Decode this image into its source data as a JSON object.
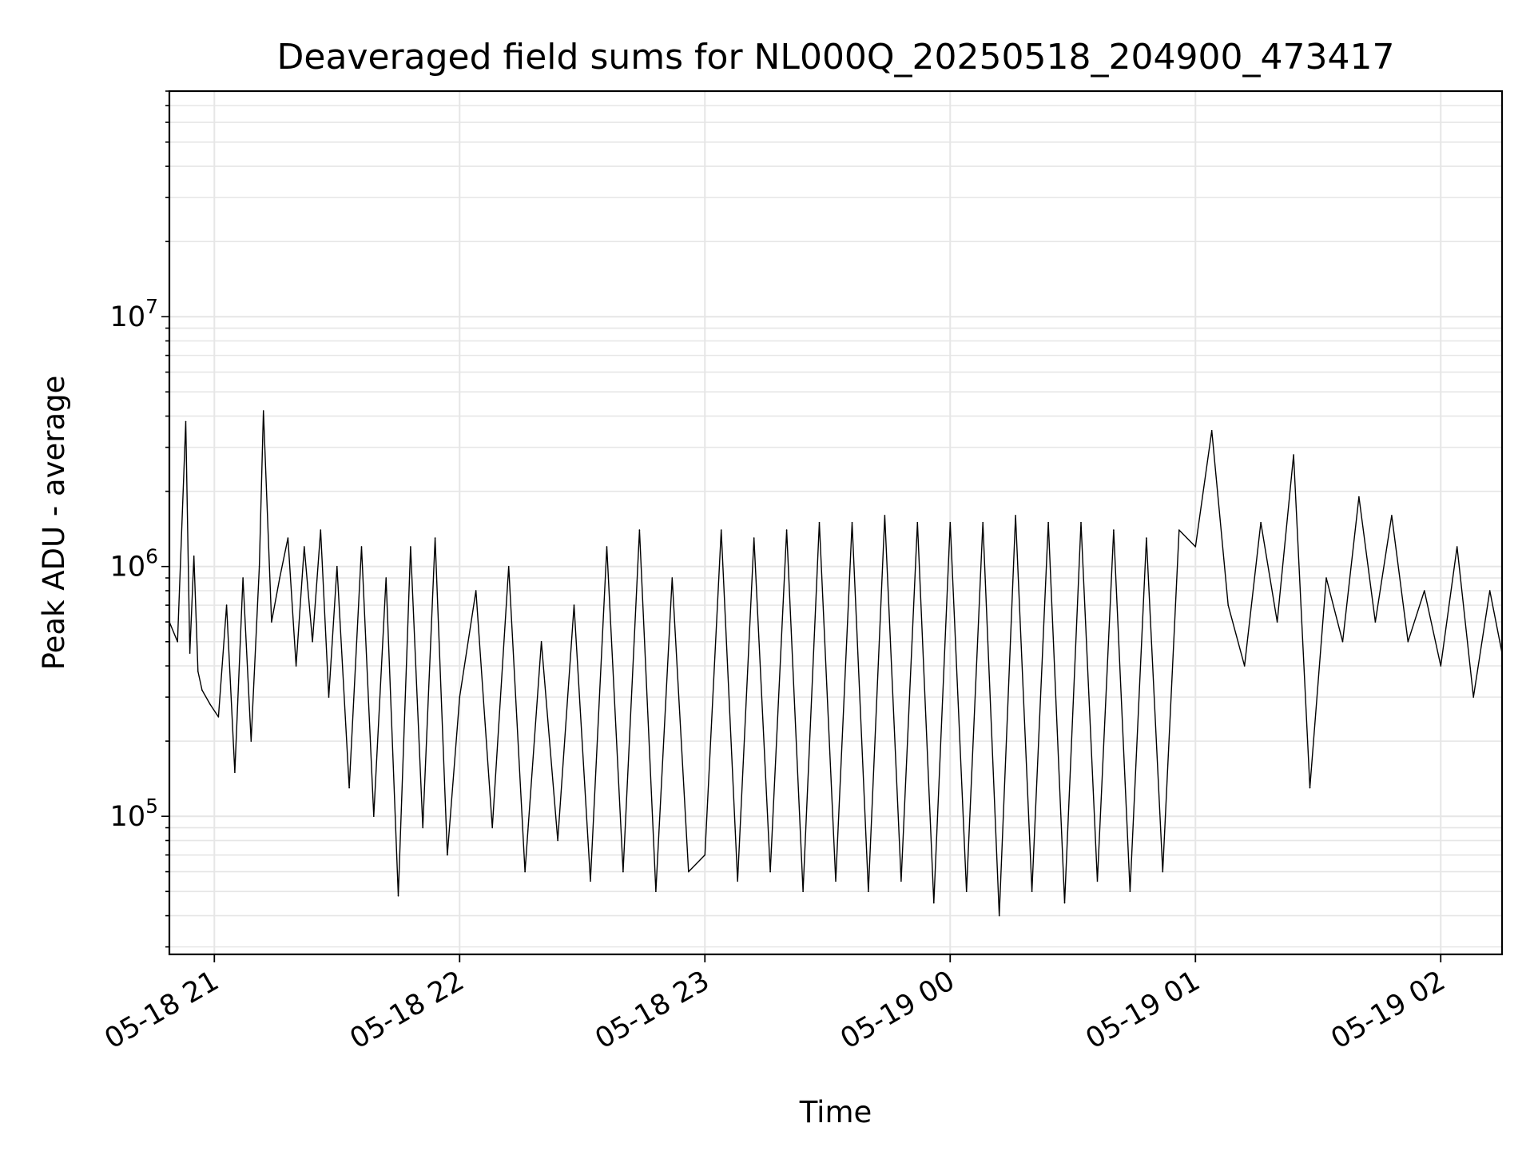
{
  "chart_data": {
    "type": "line",
    "title": "Deaveraged field sums for NL000Q_20250518_204900_473417",
    "xlabel": "Time",
    "ylabel": "Peak ADU - average",
    "yscale": "log",
    "ylim": [
      28000,
      80000000
    ],
    "xlim": [
      "2025-05-18T20:49:00",
      "2025-05-19T02:15:00"
    ],
    "grid": true,
    "line_color": "#000000",
    "grid_color": "#e6e6e6",
    "x_ticks": [
      {
        "value": "2025-05-18T21:00:00",
        "label": "05-18 21"
      },
      {
        "value": "2025-05-18T22:00:00",
        "label": "05-18 22"
      },
      {
        "value": "2025-05-18T23:00:00",
        "label": "05-18 23"
      },
      {
        "value": "2025-05-19T00:00:00",
        "label": "05-19 00"
      },
      {
        "value": "2025-05-19T01:00:00",
        "label": "05-19 01"
      },
      {
        "value": "2025-05-19T02:00:00",
        "label": "05-19 02"
      }
    ],
    "y_ticks": [
      {
        "value": 100000,
        "base": "10",
        "exp": "5"
      },
      {
        "value": 1000000,
        "base": "10",
        "exp": "6"
      },
      {
        "value": 10000000,
        "base": "10",
        "exp": "7"
      }
    ],
    "x": [
      "2025-05-18T20:49:00",
      "2025-05-18T20:51:00",
      "2025-05-18T20:53:00",
      "2025-05-18T20:54:00",
      "2025-05-18T20:55:00",
      "2025-05-18T20:56:00",
      "2025-05-18T20:57:00",
      "2025-05-18T20:59:00",
      "2025-05-18T21:01:00",
      "2025-05-18T21:03:00",
      "2025-05-18T21:05:00",
      "2025-05-18T21:07:00",
      "2025-05-18T21:09:00",
      "2025-05-18T21:11:00",
      "2025-05-18T21:12:00",
      "2025-05-18T21:14:00",
      "2025-05-18T21:16:00",
      "2025-05-18T21:18:00",
      "2025-05-18T21:20:00",
      "2025-05-18T21:22:00",
      "2025-05-18T21:24:00",
      "2025-05-18T21:26:00",
      "2025-05-18T21:28:00",
      "2025-05-18T21:30:00",
      "2025-05-18T21:33:00",
      "2025-05-18T21:36:00",
      "2025-05-18T21:39:00",
      "2025-05-18T21:42:00",
      "2025-05-18T21:45:00",
      "2025-05-18T21:48:00",
      "2025-05-18T21:51:00",
      "2025-05-18T21:54:00",
      "2025-05-18T21:57:00",
      "2025-05-18T22:00:00",
      "2025-05-18T22:04:00",
      "2025-05-18T22:08:00",
      "2025-05-18T22:12:00",
      "2025-05-18T22:16:00",
      "2025-05-18T22:20:00",
      "2025-05-18T22:24:00",
      "2025-05-18T22:28:00",
      "2025-05-18T22:32:00",
      "2025-05-18T22:36:00",
      "2025-05-18T22:40:00",
      "2025-05-18T22:44:00",
      "2025-05-18T22:48:00",
      "2025-05-18T22:52:00",
      "2025-05-18T22:56:00",
      "2025-05-18T23:00:00",
      "2025-05-18T23:04:00",
      "2025-05-18T23:08:00",
      "2025-05-18T23:12:00",
      "2025-05-18T23:16:00",
      "2025-05-18T23:20:00",
      "2025-05-18T23:24:00",
      "2025-05-18T23:28:00",
      "2025-05-18T23:32:00",
      "2025-05-18T23:36:00",
      "2025-05-18T23:40:00",
      "2025-05-18T23:44:00",
      "2025-05-18T23:48:00",
      "2025-05-18T23:52:00",
      "2025-05-18T23:56:00",
      "2025-05-19T00:00:00",
      "2025-05-19T00:04:00",
      "2025-05-19T00:08:00",
      "2025-05-19T00:12:00",
      "2025-05-19T00:16:00",
      "2025-05-19T00:20:00",
      "2025-05-19T00:24:00",
      "2025-05-19T00:28:00",
      "2025-05-19T00:32:00",
      "2025-05-19T00:36:00",
      "2025-05-19T00:40:00",
      "2025-05-19T00:44:00",
      "2025-05-19T00:48:00",
      "2025-05-19T00:52:00",
      "2025-05-19T00:56:00",
      "2025-05-19T01:00:00",
      "2025-05-19T01:04:00",
      "2025-05-19T01:08:00",
      "2025-05-19T01:12:00",
      "2025-05-19T01:16:00",
      "2025-05-19T01:20:00",
      "2025-05-19T01:24:00",
      "2025-05-19T01:28:00",
      "2025-05-19T01:32:00",
      "2025-05-19T01:36:00",
      "2025-05-19T01:40:00",
      "2025-05-19T01:44:00",
      "2025-05-19T01:48:00",
      "2025-05-19T01:52:00",
      "2025-05-19T01:56:00",
      "2025-05-19T02:00:00",
      "2025-05-19T02:04:00",
      "2025-05-19T02:08:00",
      "2025-05-19T02:12:00",
      "2025-05-19T02:15:00"
    ],
    "y": [
      600000,
      500000,
      3800000,
      450000,
      1100000,
      380000,
      320000,
      280000,
      250000,
      700000,
      150000,
      900000,
      200000,
      1000000,
      4200000,
      600000,
      900000,
      1300000,
      400000,
      1200000,
      500000,
      1400000,
      300000,
      1000000,
      130000,
      1200000,
      100000,
      900000,
      48000,
      1200000,
      90000,
      1300000,
      70000,
      300000,
      800000,
      90000,
      1000000,
      60000,
      500000,
      80000,
      700000,
      55000,
      1200000,
      60000,
      1400000,
      50000,
      900000,
      60000,
      70000,
      1400000,
      55000,
      1300000,
      60000,
      1400000,
      50000,
      1500000,
      55000,
      1500000,
      50000,
      1600000,
      55000,
      1500000,
      45000,
      1500000,
      50000,
      1500000,
      40000,
      1600000,
      50000,
      1500000,
      45000,
      1500000,
      55000,
      1400000,
      50000,
      1300000,
      60000,
      1400000,
      1200000,
      3500000,
      700000,
      400000,
      1500000,
      600000,
      2800000,
      130000,
      900000,
      500000,
      1900000,
      600000,
      1600000,
      500000,
      800000,
      400000,
      1200000,
      300000,
      800000,
      450000
    ]
  }
}
